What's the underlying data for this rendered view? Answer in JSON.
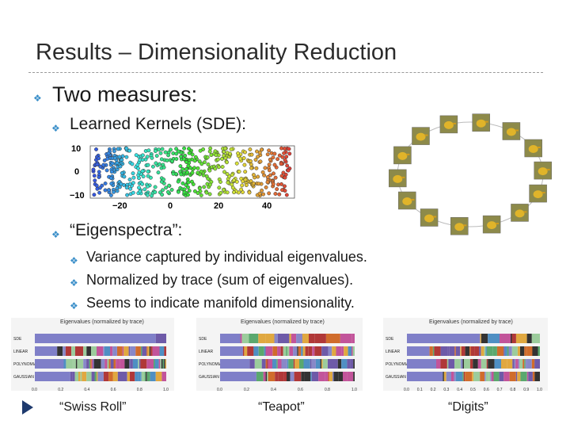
{
  "slide": {
    "title": "Results – Dimensionality Reduction",
    "bullets": {
      "level1": "Two measures:",
      "kernels": "Learned Kernels (SDE):",
      "eigenspectra": "“Eigenspectra”:",
      "sub": [
        "Variance captured by individual eigenvalues.",
        "Normalized by trace (sum of eigenvalues).",
        "Seems to indicate manifold dimensionality."
      ]
    },
    "captions": {
      "swiss": "“Swiss Roll”",
      "teapot": "“Teapot”",
      "digits": "“Digits”"
    },
    "colors": {
      "bullet": "#3b8fc9",
      "arrow": "#1e3a6e"
    }
  },
  "scatter": {
    "y_ticks": [
      "10",
      "0",
      "−10"
    ],
    "x_ticks": [
      "−20",
      "0",
      "20",
      "40"
    ]
  },
  "eigencharts": [
    {
      "title": "Eigenvalues (normalized by trace)",
      "rows": [
        "SDE",
        "LINEAR",
        "POLYNOMIAL",
        "GAUSSIAN"
      ],
      "ticks": [
        "0.0",
        "0.2",
        "0.4",
        "0.6",
        "0.8",
        "1.0"
      ]
    },
    {
      "title": "Eigenvalues (normalized by trace)",
      "rows": [
        "SDE",
        "LINEAR",
        "POLYNOMIAL",
        "GAUSSIAN"
      ],
      "ticks": [
        "0.0",
        "0.2",
        "0.4",
        "0.6",
        "0.8",
        "1.0"
      ]
    },
    {
      "title": "Eigenvalues (normalized by trace)",
      "rows": [
        "SDE",
        "LINEAR",
        "POLYNOMIAL",
        "GAUSSIAN"
      ],
      "ticks": [
        "0.0",
        "0.1",
        "0.2",
        "0.3",
        "0.4",
        "0.5",
        "0.6",
        "0.7",
        "0.8",
        "0.9",
        "1.0"
      ]
    }
  ]
}
